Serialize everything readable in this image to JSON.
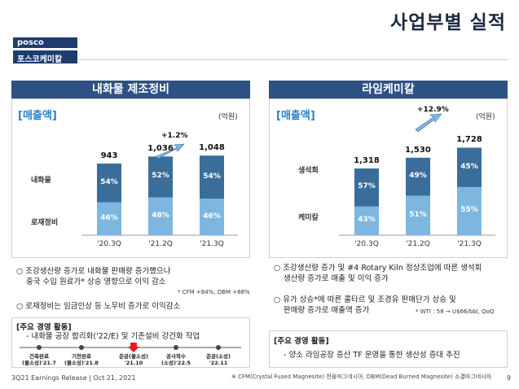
{
  "header": {
    "title": "사업부별 실적",
    "logo_en": "posco",
    "logo_kr": "포스코케미칼"
  },
  "left": {
    "title": "내화물 제조정비",
    "section_label": "[매출액]",
    "unit": "(억원)",
    "growth": "+1.2%",
    "row_labels": [
      "내화물",
      "로재정비"
    ],
    "chart_data": {
      "type": "bar",
      "categories": [
        "'20.3Q",
        "'21.2Q",
        "'21.3Q"
      ],
      "totals": [
        943,
        1036,
        1048
      ],
      "total_labels": [
        "943",
        "1,036",
        "1,048"
      ],
      "series": [
        {
          "name": "내화물",
          "values": [
            54,
            52,
            54
          ],
          "labels": [
            "54%",
            "52%",
            "54%"
          ]
        },
        {
          "name": "로재정비",
          "values": [
            46,
            48,
            46
          ],
          "labels": [
            "46%",
            "48%",
            "46%"
          ]
        }
      ]
    },
    "bullet1": "○ 조강생산량 증가로 내화물 판매량 증가했으나",
    "bullet1b": "중국 수입 원료가* 상승 영향으로 이익 감소",
    "note1": "* CFM +84%, DBM +88%",
    "bullet2": "○ 로재정비는 임금인상 등 노무비 증가로 이익감소",
    "activity_head": "[주요 경영 활동]",
    "activity_item": "- 내화물 공장 합리화('22/E) 및 기존설비 강건화 작업",
    "timeline": [
      {
        "l1": "건축완료",
        "l2": "(물소성)'21.7"
      },
      {
        "l1": "기전완료",
        "l2": "(물소성)'21.8"
      },
      {
        "l1": "준공(물소성)",
        "l2": "'21.10"
      },
      {
        "l1": "공사착수",
        "l2": "(소성)'22.5"
      },
      {
        "l1": "준공(소성)",
        "l2": "'22.11"
      }
    ]
  },
  "right": {
    "title": "라임케미칼",
    "section_label": "[매출액]",
    "unit": "(억원)",
    "growth": "+12.9%",
    "row_labels": [
      "생석회",
      "케미칼"
    ],
    "chart_data": {
      "type": "bar",
      "categories": [
        "'20.3Q",
        "'21.2Q",
        "'21.3Q"
      ],
      "totals": [
        1318,
        1530,
        1728
      ],
      "total_labels": [
        "1,318",
        "1,530",
        "1,728"
      ],
      "series": [
        {
          "name": "생석회",
          "values": [
            57,
            49,
            45
          ],
          "labels": [
            "57%",
            "49%",
            "45%"
          ]
        },
        {
          "name": "케미칼",
          "values": [
            43,
            51,
            55
          ],
          "labels": [
            "43%",
            "51%",
            "55%"
          ]
        }
      ]
    },
    "bullet1": "○ 조강생산량 증가 및 #4 Rotary Kiln 정상조업에 따른 생석회",
    "bullet1b": "생산량 증가로 매출 및 이익 증가",
    "bullet2": "○ 유가 상승*에 따른 콜타르 및 조경유 판매단가 상승 및",
    "bullet2b": "판매량 증가로 매출액 증가",
    "note2": "* WTI : 58 → U$66/bbl, QoQ",
    "activity_head": "[주요 경영 활동]",
    "activity_item": "- 양소 라임공장 증산 TF 운영을 통한 생산성 증대 추진"
  },
  "footer": {
    "left": "3Q21 Earnings Release | Oct 21, 2021",
    "note": "※ CFM(Crystal Fused Magnesite) 전융마그네시아,  DBM(Dead Burned Magnesite) 소결마그네시아",
    "page": "9"
  },
  "colors": {
    "dark_bar": "#3b6d9a",
    "light_bar": "#7db7e0",
    "header": "#2d5183",
    "accent": "#2a7fc8"
  }
}
